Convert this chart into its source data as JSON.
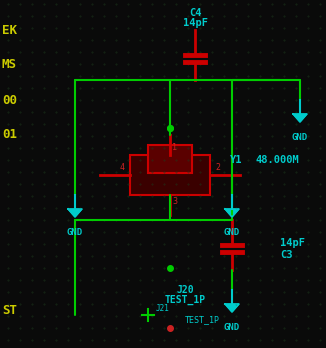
{
  "bg_color": "#0a0a0a",
  "grid_color": "#1a2a1a",
  "grid_dot_color": "#1e3a1e",
  "wire_color": "#00cc00",
  "component_color": "#8b0000",
  "component_border": "#cc0000",
  "text_cyan": "#00cccc",
  "text_yellow": "#cccc00",
  "text_red": "#cc2222",
  "gnd_color": "#00cccc",
  "left_labels": [
    "EK",
    "MS",
    "00",
    "01"
  ],
  "bottom_labels": [
    "ST"
  ],
  "c4_label": "C4",
  "c4_val": "14pF",
  "c3_label": "14pF",
  "c3_val": "C3",
  "y1_label": "Y1",
  "y1_freq": "48.000M",
  "j20_label": "J20",
  "test1p_label": "TEST_1P",
  "j21_label": "J21",
  "test1p2_label": "TEST_1P",
  "pin4_label": "4",
  "pin2_label": "2",
  "pin3_label": "3",
  "pin1_label": "1"
}
